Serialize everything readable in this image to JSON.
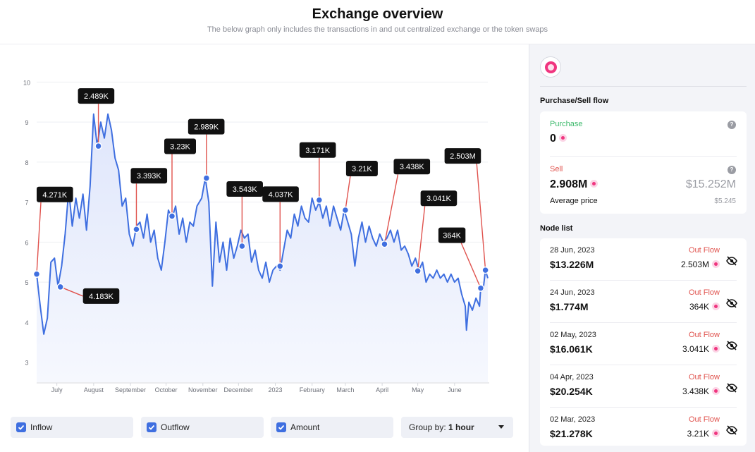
{
  "header": {
    "title": "Exchange overview",
    "subtitle": "The below graph only includes the transactions in and out centralized exchange or the token swaps"
  },
  "controls": {
    "inflow": "Inflow",
    "outflow": "Outflow",
    "amount": "Amount",
    "group_prefix": "Group by:",
    "group_value": "1 hour"
  },
  "colors": {
    "line": "#3f6fe0",
    "annotation": "#e0524d",
    "tooltip": "#111111",
    "outflow": "#e0524d",
    "purchase": "#3cb96b",
    "token": "#f0357f"
  },
  "sidebar": {
    "logo_icon": "token-logo-icon",
    "flow_title": "Purchase/Sell flow",
    "purchase_label": "Purchase",
    "purchase_value": "0",
    "sell_label": "Sell",
    "sell_value": "2.908M",
    "sell_usd": "$15.252M",
    "avg_label": "Average price",
    "avg_value": "$5.245",
    "node_title": "Node list",
    "nodes": [
      {
        "date": "28 Jun, 2023",
        "flow": "Out Flow",
        "usd": "$13.226M",
        "amount": "2.503M"
      },
      {
        "date": "24 Jun, 2023",
        "flow": "Out Flow",
        "usd": "$1.774M",
        "amount": "364K"
      },
      {
        "date": "02 May, 2023",
        "flow": "Out Flow",
        "usd": "$16.061K",
        "amount": "3.041K"
      },
      {
        "date": "04 Apr, 2023",
        "flow": "Out Flow",
        "usd": "$20.254K",
        "amount": "3.438K"
      },
      {
        "date": "02 Mar, 2023",
        "flow": "Out Flow",
        "usd": "$21.278K",
        "amount": "3.21K"
      }
    ]
  },
  "chart_data": {
    "type": "line",
    "x_ticks": [
      "July",
      "August",
      "September",
      "October",
      "November",
      "December",
      "2023",
      "February",
      "March",
      "April",
      "May",
      "June"
    ],
    "y_ticks": [
      3,
      4,
      5,
      6,
      7,
      8,
      9,
      10
    ],
    "ylim": [
      2.5,
      10.5
    ],
    "x_range": [
      "2022-06-15",
      "2023-06-30"
    ],
    "price_series": [
      [
        "2022-06-15",
        5.2
      ],
      [
        "2022-06-18",
        4.4
      ],
      [
        "2022-06-21",
        3.7
      ],
      [
        "2022-06-24",
        4.1
      ],
      [
        "2022-06-27",
        5.5
      ],
      [
        "2022-06-30",
        5.6
      ],
      [
        "2022-07-03",
        4.9
      ],
      [
        "2022-07-06",
        5.4
      ],
      [
        "2022-07-09",
        6.2
      ],
      [
        "2022-07-12",
        7.3
      ],
      [
        "2022-07-15",
        6.4
      ],
      [
        "2022-07-18",
        7.1
      ],
      [
        "2022-07-21",
        6.6
      ],
      [
        "2022-07-24",
        7.2
      ],
      [
        "2022-07-27",
        6.3
      ],
      [
        "2022-07-30",
        7.4
      ],
      [
        "2022-08-02",
        9.2
      ],
      [
        "2022-08-05",
        8.4
      ],
      [
        "2022-08-08",
        9.0
      ],
      [
        "2022-08-11",
        8.6
      ],
      [
        "2022-08-14",
        9.2
      ],
      [
        "2022-08-17",
        8.8
      ],
      [
        "2022-08-20",
        8.1
      ],
      [
        "2022-08-23",
        7.8
      ],
      [
        "2022-08-26",
        6.9
      ],
      [
        "2022-08-29",
        7.1
      ],
      [
        "2022-09-01",
        6.2
      ],
      [
        "2022-09-04",
        5.9
      ],
      [
        "2022-09-07",
        6.4
      ],
      [
        "2022-09-10",
        6.5
      ],
      [
        "2022-09-13",
        6.1
      ],
      [
        "2022-09-16",
        6.7
      ],
      [
        "2022-09-19",
        6.0
      ],
      [
        "2022-09-22",
        6.3
      ],
      [
        "2022-09-25",
        5.6
      ],
      [
        "2022-09-28",
        5.3
      ],
      [
        "2022-10-01",
        6.0
      ],
      [
        "2022-10-04",
        6.8
      ],
      [
        "2022-10-07",
        6.6
      ],
      [
        "2022-10-10",
        6.9
      ],
      [
        "2022-10-13",
        6.2
      ],
      [
        "2022-10-16",
        6.6
      ],
      [
        "2022-10-19",
        6.0
      ],
      [
        "2022-10-22",
        6.5
      ],
      [
        "2022-10-25",
        6.4
      ],
      [
        "2022-10-28",
        6.9
      ],
      [
        "2022-11-01",
        7.1
      ],
      [
        "2022-11-04",
        7.6
      ],
      [
        "2022-11-07",
        7.0
      ],
      [
        "2022-11-10",
        4.9
      ],
      [
        "2022-11-13",
        6.5
      ],
      [
        "2022-11-16",
        5.5
      ],
      [
        "2022-11-19",
        6.0
      ],
      [
        "2022-11-22",
        5.3
      ],
      [
        "2022-11-25",
        6.1
      ],
      [
        "2022-11-28",
        5.6
      ],
      [
        "2022-12-01",
        5.9
      ],
      [
        "2022-12-04",
        6.3
      ],
      [
        "2022-12-07",
        6.1
      ],
      [
        "2022-12-10",
        6.2
      ],
      [
        "2022-12-13",
        5.5
      ],
      [
        "2022-12-16",
        5.8
      ],
      [
        "2022-12-19",
        5.3
      ],
      [
        "2022-12-22",
        5.1
      ],
      [
        "2022-12-25",
        5.5
      ],
      [
        "2022-12-28",
        5.0
      ],
      [
        "2022-12-31",
        5.3
      ],
      [
        "2023-01-03",
        5.4
      ],
      [
        "2023-01-06",
        5.3
      ],
      [
        "2023-01-09",
        5.8
      ],
      [
        "2023-01-12",
        6.3
      ],
      [
        "2023-01-15",
        6.1
      ],
      [
        "2023-01-18",
        6.7
      ],
      [
        "2023-01-21",
        6.4
      ],
      [
        "2023-01-24",
        6.9
      ],
      [
        "2023-01-27",
        6.6
      ],
      [
        "2023-01-30",
        6.5
      ],
      [
        "2023-02-02",
        7.1
      ],
      [
        "2023-02-05",
        6.8
      ],
      [
        "2023-02-08",
        7.0
      ],
      [
        "2023-02-11",
        6.6
      ],
      [
        "2023-02-14",
        6.9
      ],
      [
        "2023-02-17",
        6.4
      ],
      [
        "2023-02-20",
        6.9
      ],
      [
        "2023-02-23",
        6.6
      ],
      [
        "2023-02-26",
        6.3
      ],
      [
        "2023-03-01",
        6.8
      ],
      [
        "2023-03-04",
        6.5
      ],
      [
        "2023-03-07",
        6.2
      ],
      [
        "2023-03-10",
        5.4
      ],
      [
        "2023-03-13",
        6.1
      ],
      [
        "2023-03-16",
        6.5
      ],
      [
        "2023-03-19",
        6.0
      ],
      [
        "2023-03-22",
        6.4
      ],
      [
        "2023-03-25",
        6.1
      ],
      [
        "2023-03-28",
        5.9
      ],
      [
        "2023-03-31",
        6.2
      ],
      [
        "2023-04-03",
        6.0
      ],
      [
        "2023-04-06",
        6.1
      ],
      [
        "2023-04-09",
        6.3
      ],
      [
        "2023-04-12",
        6.0
      ],
      [
        "2023-04-15",
        6.3
      ],
      [
        "2023-04-18",
        5.8
      ],
      [
        "2023-04-21",
        5.9
      ],
      [
        "2023-04-24",
        5.7
      ],
      [
        "2023-04-27",
        5.4
      ],
      [
        "2023-04-30",
        5.6
      ],
      [
        "2023-05-03",
        5.3
      ],
      [
        "2023-05-06",
        5.5
      ],
      [
        "2023-05-09",
        5.0
      ],
      [
        "2023-05-12",
        5.2
      ],
      [
        "2023-05-15",
        5.1
      ],
      [
        "2023-05-18",
        5.3
      ],
      [
        "2023-05-21",
        5.1
      ],
      [
        "2023-05-24",
        5.2
      ],
      [
        "2023-05-27",
        5.0
      ],
      [
        "2023-05-30",
        5.2
      ],
      [
        "2023-06-02",
        5.0
      ],
      [
        "2023-06-05",
        5.1
      ],
      [
        "2023-06-08",
        4.7
      ],
      [
        "2023-06-11",
        4.4
      ],
      [
        "2023-06-12",
        3.8
      ],
      [
        "2023-06-14",
        4.5
      ],
      [
        "2023-06-17",
        4.3
      ],
      [
        "2023-06-20",
        4.6
      ],
      [
        "2023-06-23",
        4.4
      ],
      [
        "2023-06-24",
        4.85
      ],
      [
        "2023-06-26",
        4.8
      ],
      [
        "2023-06-28",
        5.3
      ],
      [
        "2023-06-30",
        5.1
      ]
    ],
    "annotations": [
      {
        "label": "4.271K",
        "date": "2022-06-15",
        "price": 5.2,
        "box": "above"
      },
      {
        "label": "4.183K",
        "date": "2022-07-05",
        "price": 4.88,
        "box": "below"
      },
      {
        "label": "2.489K",
        "date": "2022-08-06",
        "price": 8.4,
        "box": "above"
      },
      {
        "label": "3.393K",
        "date": "2022-09-07",
        "price": 6.32,
        "box": "above"
      },
      {
        "label": "3.23K",
        "date": "2022-10-07",
        "price": 6.65,
        "box": "above"
      },
      {
        "label": "2.989K",
        "date": "2022-11-05",
        "price": 7.6,
        "box": "above"
      },
      {
        "label": "3.543K",
        "date": "2022-12-05",
        "price": 5.9,
        "box": "above"
      },
      {
        "label": "4.037K",
        "date": "2023-01-06",
        "price": 5.4,
        "box": "above"
      },
      {
        "label": "3.171K",
        "date": "2023-02-08",
        "price": 7.05,
        "box": "above"
      },
      {
        "label": "3.21K",
        "date": "2023-03-02",
        "price": 6.8,
        "box": "above"
      },
      {
        "label": "3.438K",
        "date": "2023-04-04",
        "price": 5.95,
        "box": "above"
      },
      {
        "label": "3.041K",
        "date": "2023-05-02",
        "price": 5.28,
        "box": "above"
      },
      {
        "label": "364K",
        "date": "2023-06-24",
        "price": 4.85,
        "box": "above"
      },
      {
        "label": "2.503M",
        "date": "2023-06-28",
        "price": 5.3,
        "box": "above"
      }
    ]
  }
}
